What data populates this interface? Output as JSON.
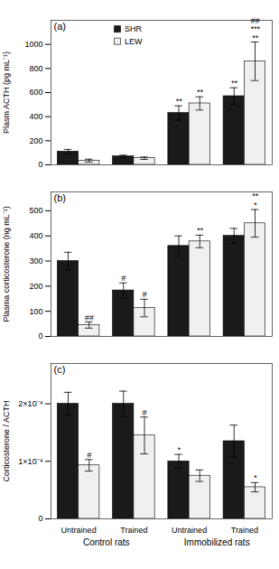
{
  "chart_data": [
    {
      "type": "bar",
      "title": "(a)",
      "ylabel": "Plasm ACTH (pg mL⁻¹)",
      "categories": [
        "Untrained",
        "Trained",
        "Untrained",
        "Trained"
      ],
      "section_labels": [
        "Control rats",
        "Immobilized rats"
      ],
      "tick_labels": "y",
      "legend": "upper left",
      "ylim": [
        0,
        1200
      ],
      "yticks": [
        0,
        200,
        400,
        600,
        800,
        1000
      ],
      "series": [
        {
          "name": "SHR",
          "color": "#1a1a1a",
          "values": [
            110,
            70,
            430,
            570
          ],
          "errors": [
            18,
            10,
            60,
            70
          ],
          "annotations": [
            null,
            null,
            "**",
            "**"
          ]
        },
        {
          "name": "LEW",
          "color": "#f0f0f0",
          "values": [
            35,
            55,
            510,
            860
          ],
          "errors": [
            12,
            10,
            55,
            160
          ],
          "annotations": [
            null,
            null,
            "**",
            "**"
          ],
          "annotations_top": [
            null,
            null,
            null,
            "##\n***"
          ]
        }
      ]
    },
    {
      "type": "bar",
      "title": "(b)",
      "ylabel": "Plasma corticosterone (ng mL⁻¹)",
      "categories": [
        "Untrained",
        "Trained",
        "Untrained",
        "Trained"
      ],
      "section_labels": [
        "Control rats",
        "Immobilized rats"
      ],
      "tick_labels": "y",
      "ylim": [
        0,
        575
      ],
      "yticks": [
        0,
        100,
        200,
        300,
        400,
        500
      ],
      "series": [
        {
          "name": "SHR",
          "color": "#1a1a1a",
          "values": [
            300,
            183,
            360,
            400
          ],
          "errors": [
            35,
            30,
            40,
            30
          ],
          "annotations": [
            null,
            "#",
            null,
            null
          ]
        },
        {
          "name": "LEW",
          "color": "#f0f0f0",
          "values": [
            45,
            113,
            378,
            450
          ],
          "errors": [
            12,
            35,
            25,
            55
          ],
          "annotations": [
            "##",
            "#",
            "**",
            "*"
          ],
          "annotations_top": [
            null,
            null,
            null,
            "**"
          ]
        }
      ]
    },
    {
      "type": "bar",
      "title": "(c)",
      "ylabel": "Corticosterone / ACTH",
      "categories": [
        "Untrained",
        "Trained",
        "Untrained",
        "Trained"
      ],
      "section_labels": [
        "Control rats",
        "Immobilized rats"
      ],
      "ylim": [
        0,
        0.00027
      ],
      "yticks": [
        0,
        {
          "value": 0.0001,
          "label": "1×10⁻⁴"
        },
        {
          "value": 0.0002,
          "label": "2×10⁻⁴"
        }
      ],
      "series": [
        {
          "name": "SHR",
          "color": "#1a1a1a",
          "values": [
            0.0002,
            0.0002,
            0.0001,
            0.000135
          ],
          "errors": [
            2e-05,
            2.2e-05,
            1.2e-05,
            2.8e-05
          ],
          "annotations": [
            null,
            null,
            "*",
            null
          ]
        },
        {
          "name": "LEW",
          "color": "#f0f0f0",
          "values": [
            9.3e-05,
            0.000145,
            7.5e-05,
            5.5e-05
          ],
          "errors": [
            1e-05,
            3.2e-05,
            1e-05,
            8e-06
          ],
          "annotations": [
            "#",
            "#",
            null,
            "*"
          ]
        }
      ]
    }
  ]
}
